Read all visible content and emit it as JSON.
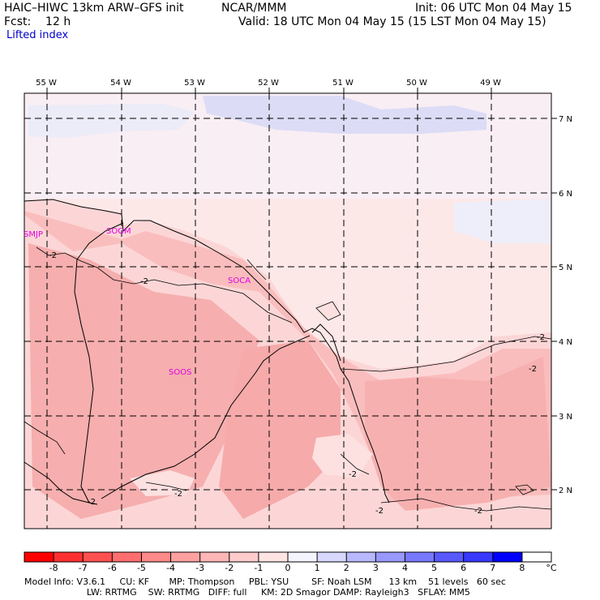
{
  "header": {
    "model_title": "HAIC–HIWC 13km ARW–GFS init",
    "org": "NCAR/MMM",
    "init": "Init: 06 UTC Mon 04 May 15",
    "fcst": "Fcst:    12 h",
    "valid": "Valid: 18 UTC Mon 04 May 15 (15 LST Mon 04 May 15)",
    "field": "Lifted index"
  },
  "map": {
    "lon_labels": [
      "55 W",
      "54 W",
      "53 W",
      "52 W",
      "51 W",
      "50 W",
      "49 W"
    ],
    "lat_labels": [
      "7 N",
      "6 N",
      "5 N",
      "4 N",
      "3 N",
      "2 N"
    ],
    "stations": [
      "SMJP",
      "SOGM",
      "SOCA",
      "SOOS"
    ],
    "contour_labels": [
      "-2",
      "-2",
      "-2",
      "-2",
      "-2",
      "-2",
      "-2",
      "-2",
      "-2"
    ]
  },
  "colorbar": {
    "ticks": [
      "-8",
      "-7",
      "-6",
      "-5",
      "-4",
      "-3",
      "-2",
      "-1",
      "0",
      "1",
      "2",
      "3",
      "4",
      "5",
      "6",
      "7",
      "8"
    ],
    "unit": "°C",
    "colors": [
      "#ff0000",
      "#ff3030",
      "#ff5050",
      "#ff6e6e",
      "#ff8a8a",
      "#ffa0a0",
      "#ffb6b6",
      "#ffcccc",
      "#ffe4e4",
      "#f4f4ff",
      "#d8d8ff",
      "#b8b8ff",
      "#9898ff",
      "#7878ff",
      "#5858ff",
      "#3838ff",
      "#0000ff"
    ]
  },
  "model_info": {
    "line1": "Model Info: V3.6.1     CU: KF       MP: Thompson     PBL: YSU        SF: Noah LSM      13 km    51 levels   60 sec",
    "line2": "                      LW: RRTMG    SW: RRTMG   DIFF: full     KM: 2D Smagor DAMP: Rayleigh3   SFLAY: MM5"
  }
}
